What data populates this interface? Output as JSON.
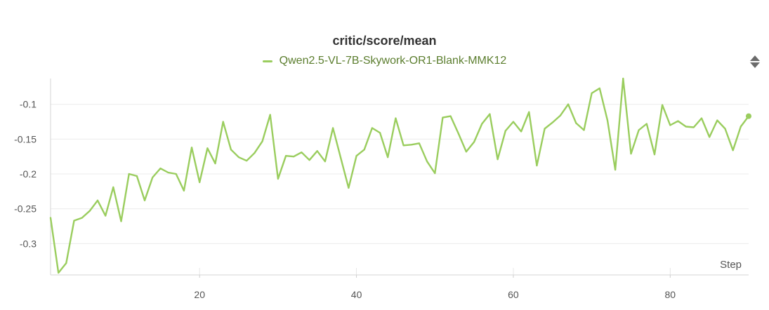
{
  "chart_data": {
    "type": "line",
    "title": "critic/score/mean",
    "xlabel": "Step",
    "ylabel": "",
    "xlim": [
      1,
      90
    ],
    "ylim": [
      -0.345,
      -0.063
    ],
    "x_ticks": [
      20,
      40,
      60,
      80
    ],
    "x_tick_labels": [
      "20",
      "40",
      "60",
      "80"
    ],
    "y_ticks": [
      -0.1,
      -0.15,
      -0.2,
      -0.25,
      -0.3
    ],
    "y_tick_labels": [
      "-0.1",
      "-0.15",
      "-0.2",
      "-0.25",
      "-0.3"
    ],
    "grid": true,
    "legend_position": "top-center",
    "series": [
      {
        "name": "Qwen2.5-VL-7B-Skywork-OR1-Blank-MMK12",
        "color": "#9acd5e",
        "x": [
          1,
          2,
          3,
          4,
          5,
          6,
          7,
          8,
          9,
          10,
          11,
          12,
          13,
          14,
          15,
          16,
          17,
          18,
          19,
          20,
          21,
          22,
          23,
          24,
          25,
          26,
          27,
          28,
          29,
          30,
          31,
          32,
          33,
          34,
          35,
          36,
          37,
          38,
          39,
          40,
          41,
          42,
          43,
          44,
          45,
          46,
          47,
          48,
          49,
          50,
          51,
          52,
          53,
          54,
          55,
          56,
          57,
          58,
          59,
          60,
          61,
          62,
          63,
          64,
          65,
          66,
          67,
          68,
          69,
          70,
          71,
          72,
          73,
          74,
          75,
          76,
          77,
          78,
          79,
          80,
          81,
          82,
          83,
          84,
          85,
          86,
          87,
          88,
          89,
          90
        ],
        "y": [
          -0.263,
          -0.342,
          -0.328,
          -0.267,
          -0.263,
          -0.253,
          -0.238,
          -0.26,
          -0.219,
          -0.268,
          -0.2,
          -0.203,
          -0.238,
          -0.205,
          -0.192,
          -0.198,
          -0.2,
          -0.224,
          -0.162,
          -0.212,
          -0.163,
          -0.185,
          -0.125,
          -0.165,
          -0.176,
          -0.181,
          -0.17,
          -0.153,
          -0.115,
          -0.207,
          -0.174,
          -0.175,
          -0.169,
          -0.18,
          -0.167,
          -0.182,
          -0.134,
          -0.177,
          -0.22,
          -0.174,
          -0.165,
          -0.134,
          -0.141,
          -0.176,
          -0.12,
          -0.159,
          -0.158,
          -0.156,
          -0.182,
          -0.199,
          -0.119,
          -0.117,
          -0.142,
          -0.168,
          -0.154,
          -0.128,
          -0.114,
          -0.179,
          -0.138,
          -0.125,
          -0.139,
          -0.111,
          -0.188,
          -0.135,
          -0.126,
          -0.116,
          -0.1,
          -0.127,
          -0.137,
          -0.084,
          -0.077,
          -0.123,
          -0.194,
          -0.063,
          -0.171,
          -0.137,
          -0.128,
          -0.172,
          -0.101,
          -0.13,
          -0.124,
          -0.132,
          -0.133,
          -0.12,
          -0.147,
          -0.123,
          -0.135,
          -0.166,
          -0.132,
          -0.117
        ]
      }
    ]
  }
}
